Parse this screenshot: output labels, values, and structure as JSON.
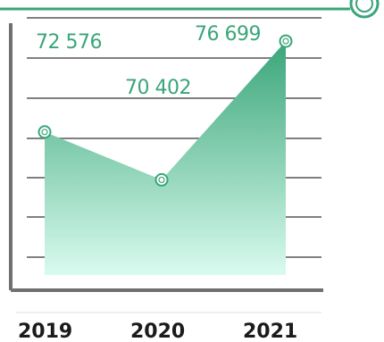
{
  "chart_data": {
    "type": "area",
    "categories": [
      "2019",
      "2020",
      "2021"
    ],
    "values": [
      72576,
      70402,
      76699
    ],
    "value_labels": [
      "72 576",
      "70 402",
      "76 699"
    ],
    "title": "",
    "xlabel": "",
    "ylabel": "",
    "ylim": [
      66000,
      78000
    ],
    "grid": true,
    "legend": "none"
  },
  "colors": {
    "accent": "#3aa579",
    "area_top": "#3aa579",
    "area_bottom": "#d9fbef",
    "grid": "#808080",
    "axis": "#707070",
    "text": "#1b1b1b"
  }
}
